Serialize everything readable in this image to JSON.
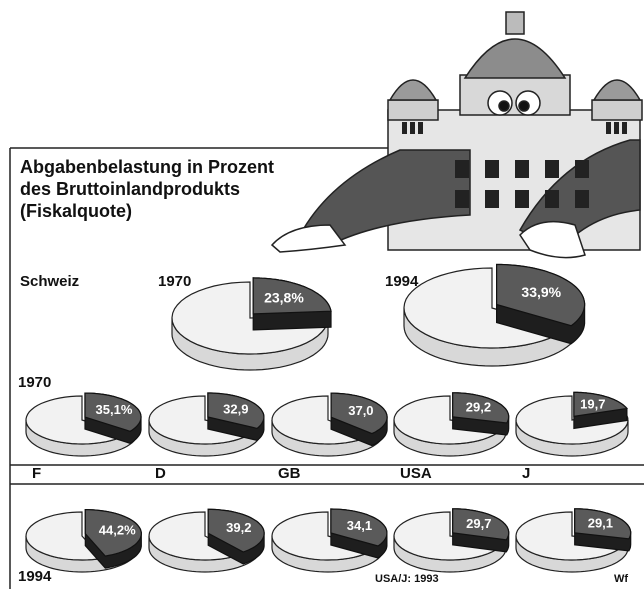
{
  "chart_data": {
    "type": "pie",
    "title": [
      "Abgabenbelastung in Prozent",
      "des Bruttoinlandprodukts",
      "(Fiskalquote)"
    ],
    "slice_color": "#5a5a5a",
    "rest_color": "#f2f2f2",
    "schweiz": {
      "label": "Schweiz",
      "pies": [
        {
          "year": "1970",
          "value": 23.8,
          "value_label": "23,8%"
        },
        {
          "year": "1994",
          "value": 33.9,
          "value_label": "33,9%"
        }
      ]
    },
    "countries": [
      "F",
      "D",
      "GB",
      "USA",
      "J"
    ],
    "rows": [
      {
        "year": "1970",
        "values": [
          35.1,
          32.9,
          37.0,
          29.2,
          19.7
        ],
        "value_labels": [
          "35,1%",
          "32,9",
          "37,0",
          "29,2",
          "19,7"
        ]
      },
      {
        "year": "1994",
        "values": [
          44.2,
          39.2,
          34.1,
          29.7,
          29.1
        ],
        "value_labels": [
          "44,2%",
          "39,2",
          "34,1",
          "29,7",
          "29,1"
        ]
      }
    ],
    "note": "USA/J: 1993",
    "credit": "Wf"
  }
}
